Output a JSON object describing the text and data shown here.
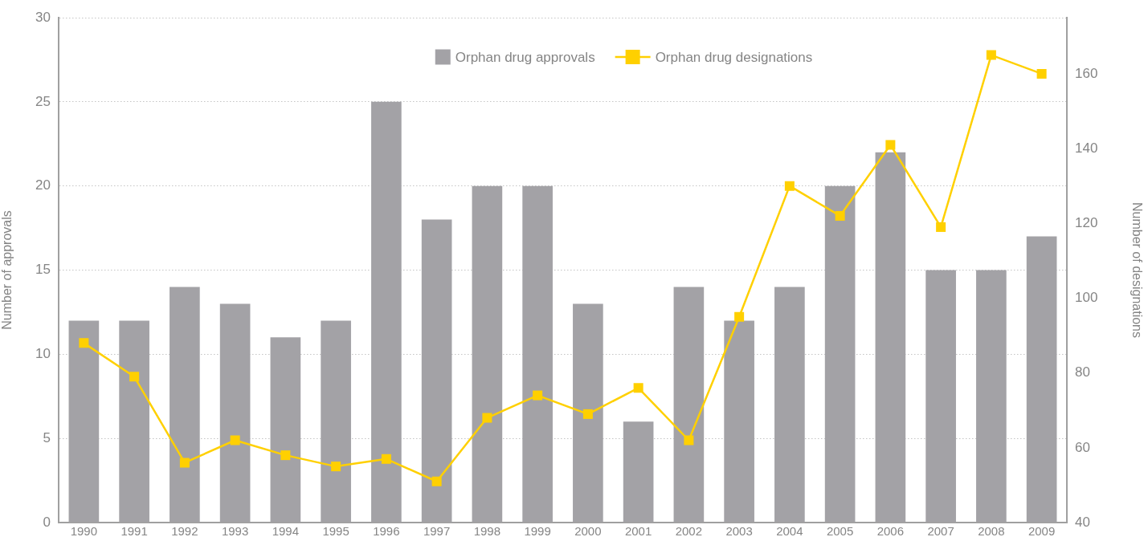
{
  "chart_data": {
    "type": "bar",
    "categories": [
      "1990",
      "1991",
      "1992",
      "1993",
      "1994",
      "1995",
      "1996",
      "1997",
      "1998",
      "1999",
      "2000",
      "2001",
      "2002",
      "2003",
      "2004",
      "2005",
      "2006",
      "2007",
      "2008",
      "2009"
    ],
    "series": [
      {
        "name": "Orphan drug approvals",
        "color": "#a3a2a6",
        "values": [
          12,
          12,
          14,
          13,
          11,
          12,
          25,
          18,
          20,
          20,
          13,
          6,
          14,
          12,
          14,
          20,
          22,
          15,
          15,
          17
        ]
      },
      {
        "name": "Orphan drug designations",
        "type": "line",
        "axis": "y2",
        "color": "#ffd000",
        "values": [
          88,
          79,
          56,
          62,
          58,
          55,
          57,
          51,
          68,
          74,
          69,
          76,
          62,
          95,
          130,
          122,
          141,
          119,
          165,
          160
        ]
      }
    ],
    "ylabel": "Number of approvals",
    "y2label": "Number of designations",
    "ylim": [
      0,
      30
    ],
    "yticks": [
      0,
      5,
      10,
      15,
      20,
      25,
      30
    ],
    "y2lim": [
      40,
      175
    ],
    "y2ticks": [
      40,
      60,
      80,
      100,
      120,
      140,
      160
    ],
    "grid": "y",
    "legend": "top",
    "marker": "square"
  }
}
